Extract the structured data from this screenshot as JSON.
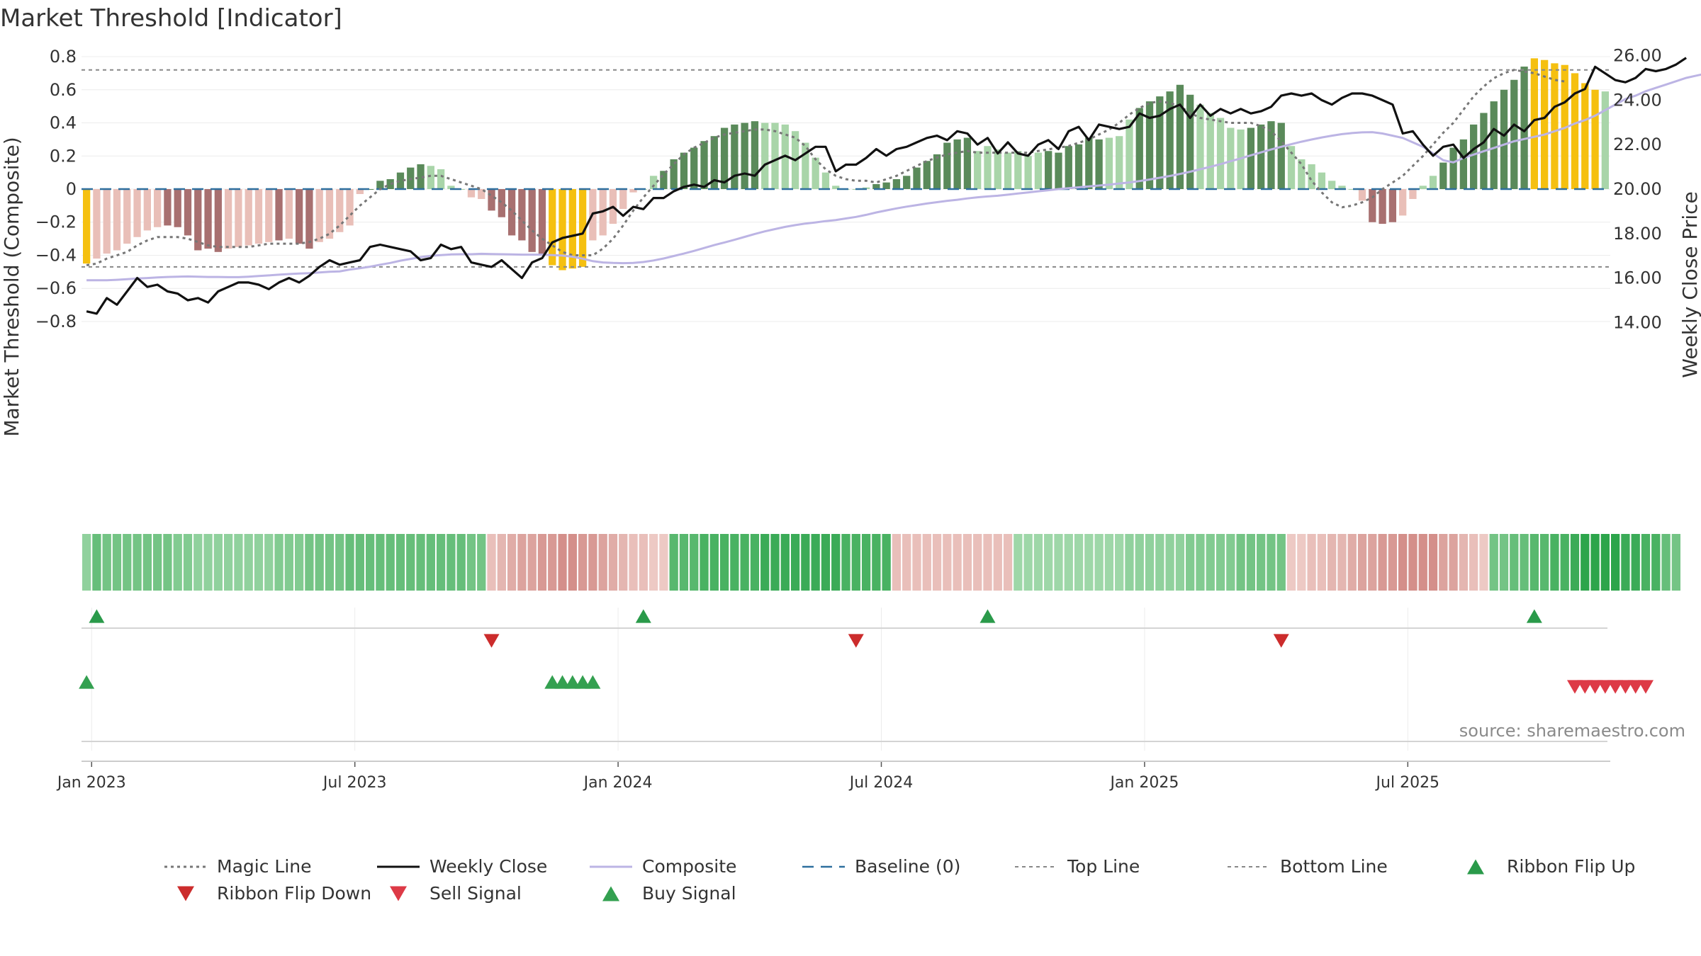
{
  "chart_data": {
    "type": "bar",
    "title": "Market Threshold [Indicator]",
    "ylabel": "Market Threshold (Composite)",
    "y2label": "Weekly Close Price",
    "source": "source: sharemaestro.com",
    "ylim": [
      -0.86,
      0.86
    ],
    "y2lim": [
      13.6,
      26.4
    ],
    "yticks": [
      0.8,
      0.6,
      0.4,
      0.2,
      0,
      -0.2,
      -0.4,
      -0.6,
      -0.8
    ],
    "ytick_labels": [
      "0.8",
      "0.6",
      "0.4",
      "0.2",
      "0",
      "−0.2",
      "−0.4",
      "−0.6",
      "−0.8"
    ],
    "y2ticks": [
      26,
      24,
      22,
      20,
      18,
      16,
      14
    ],
    "y2tick_labels": [
      "26.00",
      "24.00",
      "22.00",
      "20.00",
      "18.00",
      "16.00",
      "14.00"
    ],
    "xticks": [
      {
        "label": "Jan 2023",
        "week": 1
      },
      {
        "label": "Jul 2023",
        "week": 27
      },
      {
        "label": "Jan 2024",
        "week": 53
      },
      {
        "label": "Jul 2024",
        "week": 79
      },
      {
        "label": "Jan 2025",
        "week": 105
      },
      {
        "label": "Jul 2025",
        "week": 131
      }
    ],
    "top_line": 0.72,
    "bottom_line": -0.47,
    "baseline": 0,
    "colors": {
      "pos_strong": "#5a8a5a",
      "pos_weak": "#a9d5a9",
      "neg_strong": "#a87070",
      "neg_weak": "#e9bfb8",
      "extreme": "#f5c010",
      "magic": "#777777",
      "close": "#111111",
      "composite": "#bcb4e4",
      "baseline": "#2e6f9e",
      "ribbon_up": "#2a9a4a",
      "ribbon_down": "#cc2c2c",
      "sell": "#dd3a46",
      "buy": "#33a050"
    },
    "composite": [
      -0.45,
      -0.42,
      -0.39,
      -0.37,
      -0.33,
      -0.29,
      -0.25,
      -0.23,
      -0.22,
      -0.23,
      -0.28,
      -0.37,
      -0.36,
      -0.38,
      -0.36,
      -0.35,
      -0.34,
      -0.33,
      -0.32,
      -0.31,
      -0.3,
      -0.33,
      -0.36,
      -0.32,
      -0.3,
      -0.26,
      -0.22,
      -0.03,
      0,
      0.05,
      0.06,
      0.1,
      0.13,
      0.15,
      0.14,
      0.12,
      0.02,
      0,
      -0.05,
      -0.06,
      -0.13,
      -0.17,
      -0.28,
      -0.31,
      -0.38,
      -0.4,
      -0.46,
      -0.49,
      -0.48,
      -0.47,
      -0.31,
      -0.28,
      -0.21,
      -0.12,
      -0.02,
      0,
      0.08,
      0.11,
      0.18,
      0.22,
      0.25,
      0.29,
      0.32,
      0.37,
      0.39,
      0.4,
      0.41,
      0.4,
      0.4,
      0.39,
      0.35,
      0.28,
      0.19,
      0.1,
      0.02,
      0,
      0,
      0.01,
      0.03,
      0.04,
      0.06,
      0.08,
      0.13,
      0.17,
      0.21,
      0.28,
      0.3,
      0.31,
      0.23,
      0.26,
      0.24,
      0.22,
      0.23,
      0.2,
      0.22,
      0.23,
      0.22,
      0.26,
      0.27,
      0.31,
      0.3,
      0.31,
      0.32,
      0.42,
      0.49,
      0.53,
      0.56,
      0.59,
      0.63,
      0.57,
      0.51,
      0.46,
      0.43,
      0.37,
      0.36,
      0.37,
      0.39,
      0.41,
      0.4,
      0.26,
      0.18,
      0.15,
      0.1,
      0.05,
      0.02,
      0,
      -0.07,
      -0.2,
      -0.21,
      -0.2,
      -0.16,
      -0.06,
      0.02,
      0.08,
      0.16,
      0.25,
      0.3,
      0.39,
      0.46,
      0.53,
      0.6,
      0.66,
      0.74,
      0.79,
      0.78,
      0.76,
      0.75,
      0.7,
      0.64,
      0.6,
      0.59
    ],
    "strength": [
      2,
      0,
      0,
      0,
      0,
      0,
      0,
      0,
      1,
      1,
      1,
      1,
      1,
      1,
      0,
      0,
      0,
      0,
      0,
      1,
      0,
      1,
      1,
      0,
      0,
      0,
      0,
      0,
      1,
      1,
      1,
      1,
      1,
      1,
      0,
      0,
      0,
      0,
      0,
      0,
      1,
      1,
      1,
      1,
      1,
      1,
      2,
      2,
      2,
      2,
      0,
      0,
      0,
      0,
      0,
      0,
      0,
      1,
      1,
      1,
      1,
      1,
      1,
      1,
      1,
      1,
      1,
      0,
      0,
      0,
      0,
      0,
      0,
      0,
      0,
      0,
      0,
      0,
      1,
      1,
      1,
      1,
      1,
      1,
      1,
      1,
      1,
      1,
      0,
      0,
      0,
      0,
      0,
      0,
      0,
      1,
      1,
      1,
      1,
      1,
      1,
      0,
      0,
      0,
      1,
      1,
      1,
      1,
      1,
      1,
      0,
      0,
      0,
      0,
      0,
      1,
      1,
      1,
      1,
      0,
      0,
      0,
      0,
      0,
      0,
      0,
      0,
      1,
      1,
      1,
      0,
      0,
      0,
      0,
      1,
      1,
      1,
      1,
      1,
      1,
      1,
      1,
      1,
      2,
      2,
      2,
      2,
      2,
      2,
      2,
      0,
      0,
      0
    ],
    "magic_line": [
      -0.46,
      -0.45,
      -0.42,
      -0.4,
      -0.38,
      -0.34,
      -0.31,
      -0.29,
      -0.29,
      -0.29,
      -0.3,
      -0.32,
      -0.34,
      -0.35,
      -0.35,
      -0.35,
      -0.35,
      -0.34,
      -0.33,
      -0.33,
      -0.33,
      -0.33,
      -0.32,
      -0.3,
      -0.27,
      -0.22,
      -0.16,
      -0.1,
      -0.05,
      0,
      0.03,
      0.05,
      0.06,
      0.07,
      0.08,
      0.08,
      0.06,
      0.04,
      0.02,
      0,
      -0.04,
      -0.08,
      -0.13,
      -0.19,
      -0.25,
      -0.3,
      -0.34,
      -0.38,
      -0.4,
      -0.4,
      -0.4,
      -0.36,
      -0.3,
      -0.22,
      -0.13,
      -0.05,
      0.02,
      0.09,
      0.15,
      0.21,
      0.25,
      0.28,
      0.31,
      0.33,
      0.34,
      0.35,
      0.36,
      0.36,
      0.35,
      0.33,
      0.31,
      0.26,
      0.18,
      0.12,
      0.08,
      0.06,
      0.05,
      0.05,
      0.04,
      0.06,
      0.08,
      0.11,
      0.14,
      0.17,
      0.19,
      0.21,
      0.22,
      0.23,
      0.22,
      0.22,
      0.22,
      0.22,
      0.22,
      0.22,
      0.23,
      0.24,
      0.25,
      0.26,
      0.28,
      0.3,
      0.33,
      0.36,
      0.4,
      0.45,
      0.49,
      0.52,
      0.53,
      0.52,
      0.5,
      0.46,
      0.43,
      0.42,
      0.41,
      0.4,
      0.4,
      0.4,
      0.38,
      0.35,
      0.29,
      0.22,
      0.15,
      0.05,
      -0.02,
      -0.08,
      -0.11,
      -0.1,
      -0.08,
      -0.05,
      0,
      0.04,
      0.08,
      0.14,
      0.2,
      0.27,
      0.34,
      0.4,
      0.48,
      0.56,
      0.62,
      0.67,
      0.7,
      0.72,
      0.71,
      0.7,
      0.68,
      0.66,
      0.65
    ],
    "weekly_close": [
      14.5,
      14.4,
      15.1,
      14.8,
      15.4,
      16.0,
      15.6,
      15.7,
      15.4,
      15.3,
      15.0,
      15.1,
      14.9,
      15.4,
      15.6,
      15.8,
      15.8,
      15.7,
      15.5,
      15.8,
      16.0,
      15.8,
      16.1,
      16.5,
      16.8,
      16.6,
      16.7,
      16.8,
      17.4,
      17.5,
      17.4,
      17.3,
      17.2,
      16.8,
      16.9,
      17.5,
      17.3,
      17.4,
      16.7,
      16.6,
      16.5,
      16.8,
      16.4,
      16.0,
      16.7,
      16.9,
      17.6,
      17.8,
      17.9,
      18.0,
      18.9,
      19.0,
      19.2,
      18.8,
      19.2,
      19.1,
      19.6,
      19.6,
      19.9,
      20.1,
      20.2,
      20.1,
      20.4,
      20.3,
      20.6,
      20.7,
      20.6,
      21.1,
      21.3,
      21.5,
      21.3,
      21.6,
      21.9,
      21.9,
      20.8,
      21.1,
      21.1,
      21.4,
      21.8,
      21.5,
      21.8,
      21.9,
      22.1,
      22.3,
      22.4,
      22.2,
      22.6,
      22.5,
      22.0,
      22.3,
      21.6,
      22.1,
      21.6,
      21.5,
      22.0,
      22.2,
      21.8,
      22.6,
      22.8,
      22.2,
      22.9,
      22.8,
      22.7,
      22.8,
      23.4,
      23.2,
      23.3,
      23.6,
      23.8,
      23.2,
      23.8,
      23.3,
      23.6,
      23.4,
      23.6,
      23.4,
      23.5,
      23.7,
      24.2,
      24.3,
      24.2,
      24.3,
      24.0,
      23.8,
      24.1,
      24.3,
      24.3,
      24.2,
      24.0,
      23.8,
      22.5,
      22.6,
      22.0,
      21.5,
      21.9,
      22.0,
      21.4,
      21.8,
      22.1,
      22.7,
      22.4,
      22.9,
      22.6,
      23.1,
      23.2,
      23.7,
      23.9,
      24.3,
      24.5,
      25.5,
      25.2,
      24.9,
      24.8,
      25.0,
      25.4,
      25.3,
      25.4,
      25.6,
      25.9
    ],
    "composite_smooth": [
      15.9,
      15.9,
      15.9,
      15.92,
      15.95,
      15.98,
      16.0,
      16.03,
      16.05,
      16.06,
      16.07,
      16.06,
      16.05,
      16.05,
      16.04,
      16.04,
      16.06,
      16.09,
      16.12,
      16.15,
      16.18,
      16.2,
      16.22,
      16.25,
      16.28,
      16.3,
      16.38,
      16.44,
      16.51,
      16.6,
      16.68,
      16.78,
      16.86,
      16.94,
      17.0,
      17.03,
      17.06,
      17.07,
      17.07,
      17.09,
      17.08,
      17.07,
      17.06,
      17.05,
      17.05,
      17.05,
      17.03,
      17.01,
      16.96,
      16.87,
      16.76,
      16.7,
      16.68,
      16.67,
      16.68,
      16.72,
      16.79,
      16.88,
      16.99,
      17.1,
      17.22,
      17.35,
      17.48,
      17.6,
      17.72,
      17.85,
      17.98,
      18.1,
      18.2,
      18.3,
      18.38,
      18.45,
      18.5,
      18.56,
      18.61,
      18.68,
      18.75,
      18.84,
      18.95,
      19.04,
      19.13,
      19.21,
      19.28,
      19.35,
      19.41,
      19.47,
      19.52,
      19.58,
      19.63,
      19.67,
      19.7,
      19.75,
      19.8,
      19.85,
      19.9,
      19.95,
      20.0,
      20.04,
      20.08,
      20.12,
      20.16,
      20.2,
      20.25,
      20.3,
      20.36,
      20.43,
      20.51,
      20.59,
      20.68,
      20.78,
      20.89,
      21.0,
      21.12,
      21.25,
      21.38,
      21.52,
      21.65,
      21.78,
      21.9,
      22.02,
      22.13,
      22.23,
      22.32,
      22.4,
      22.47,
      22.52,
      22.55,
      22.56,
      22.5,
      22.4,
      22.3,
      22.1,
      21.9,
      21.6,
      21.3,
      21.2,
      21.4,
      21.55,
      21.7,
      21.85,
      22.0,
      22.15,
      22.25,
      22.35,
      22.45,
      22.6,
      22.75,
      22.95,
      23.1,
      23.3,
      23.55,
      23.8,
      24.05,
      24.2,
      24.4,
      24.55,
      24.7,
      24.85,
      25.0,
      25.1,
      25.2
    ],
    "ribbon": [
      5,
      8,
      7,
      7,
      7,
      7,
      7,
      7,
      7,
      6,
      6,
      5,
      5,
      5,
      5,
      5,
      5,
      5,
      5,
      6,
      6,
      6,
      7,
      7,
      7,
      7,
      8,
      8,
      8,
      8,
      8,
      8,
      8,
      8,
      8,
      8,
      8,
      8,
      7,
      7,
      -3,
      -4,
      -5,
      -6,
      -6,
      -7,
      -7,
      -8,
      -8,
      -7,
      -7,
      -6,
      -5,
      -4,
      -3,
      -3,
      -2,
      -2,
      9,
      9,
      9,
      10,
      10,
      10,
      10,
      10,
      10,
      11,
      11,
      11,
      11,
      11,
      11,
      11,
      11,
      10,
      10,
      10,
      10,
      10,
      -3,
      -3,
      -3,
      -3,
      -3,
      -3,
      -3,
      -3,
      -3,
      -3,
      -3,
      -3,
      4,
      4,
      4,
      4,
      4,
      4,
      4,
      4,
      4,
      4,
      4,
      5,
      5,
      5,
      5,
      5,
      5,
      6,
      6,
      6,
      6,
      6,
      7,
      7,
      7,
      7,
      7,
      -2,
      -2,
      -3,
      -3,
      -4,
      -4,
      -5,
      -6,
      -6,
      -7,
      -7,
      -8,
      -8,
      -8,
      -8,
      -6,
      -6,
      -4,
      -3,
      -2,
      7,
      7,
      8,
      8,
      9,
      9,
      10,
      10,
      11,
      12,
      12,
      12,
      12,
      11,
      11,
      10,
      10,
      8,
      7
    ],
    "signals": {
      "ribbon_flip_up": [
        1,
        55,
        89,
        143
      ],
      "ribbon_flip_down": [
        40,
        76,
        118
      ],
      "buy": [
        0,
        46,
        47,
        48,
        49,
        50
      ],
      "sell": [
        147,
        148,
        149,
        150,
        151,
        152,
        153,
        154
      ]
    },
    "legend": [
      {
        "label": "Magic Line",
        "type": "line-dotted",
        "color": "#777777"
      },
      {
        "label": "Weekly Close",
        "type": "line-solid",
        "color": "#111111"
      },
      {
        "label": "Composite",
        "type": "line-solid",
        "color": "#bcb4e4"
      },
      {
        "label": "Baseline (0)",
        "type": "line-dashed",
        "color": "#2e6f9e"
      },
      {
        "label": "Top Line",
        "type": "line-dotted-thin",
        "color": "#888888"
      },
      {
        "label": "Bottom Line",
        "type": "line-dotted-thin",
        "color": "#888888"
      },
      {
        "label": "Ribbon Flip Up",
        "type": "marker-up",
        "color": "#2a9a4a"
      },
      {
        "label": "Ribbon Flip Down",
        "type": "marker-down",
        "color": "#cc2c2c"
      },
      {
        "label": "Sell Signal",
        "type": "marker-down",
        "color": "#dd3a46"
      },
      {
        "label": "Buy Signal",
        "type": "marker-up",
        "color": "#33a050"
      }
    ]
  }
}
